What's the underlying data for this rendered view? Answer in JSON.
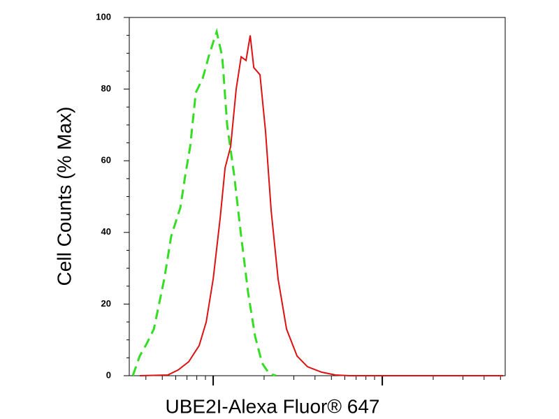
{
  "chart_data": {
    "type": "line",
    "xlabel": "UBE2I-Alexa Fluor® 647",
    "ylabel": "Cell Counts (% Max)",
    "xscale": "log",
    "xlim": [
      319,
      53300
    ],
    "xticks": [
      1000,
      10000
    ],
    "ylim": [
      0,
      100
    ],
    "yticks": [
      0,
      20,
      40,
      60,
      80,
      100
    ],
    "series": [
      {
        "color": "#33dd22",
        "dash": true,
        "x": [
          335,
          368,
          405,
          446,
          514,
          565,
          640,
          684,
          731,
          789,
          867,
          953,
          1049,
          1132,
          1210,
          1331,
          1463,
          1610,
          1770,
          1946,
          2140,
          2354
        ],
        "values": [
          0,
          5.5,
          9,
          13,
          27,
          39,
          47,
          56,
          64,
          79,
          83,
          90,
          96,
          89,
          70,
          56,
          39,
          23,
          11,
          3.5,
          0.6,
          0
        ]
      },
      {
        "color": "#dd1111",
        "dash": false,
        "x": [
          368,
          539,
          621,
          717,
          826,
          909,
          1000,
          1100,
          1176,
          1268,
          1368,
          1463,
          1564,
          1656,
          1738,
          1892,
          2042,
          2203,
          2421,
          2716,
          3133,
          3612,
          4368,
          5284,
          6393,
          51840
        ],
        "values": [
          0,
          0.2,
          1.6,
          3.9,
          8.4,
          15,
          27,
          44,
          58,
          64,
          80,
          89,
          88,
          95,
          86,
          84,
          68,
          46,
          27,
          13,
          5.5,
          2.5,
          1,
          0.2,
          0,
          0
        ]
      }
    ]
  }
}
